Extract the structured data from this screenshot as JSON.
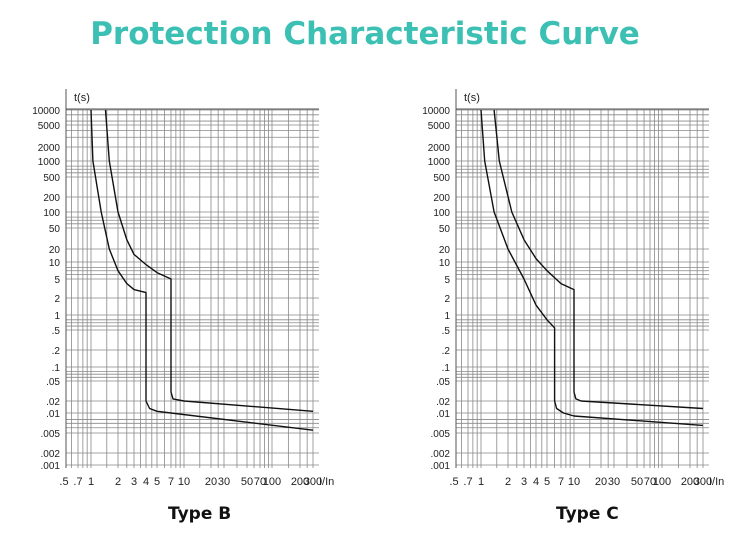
{
  "title": "Protection Characteristic Curve",
  "chart_data": [
    {
      "type": "line",
      "caption": "Type B",
      "ylabel": "t(s)",
      "xlabel": "I/In",
      "x_ticks": [
        ".5",
        ".7",
        "1",
        "2",
        "3",
        "4",
        "5",
        "7",
        "10",
        "20",
        "30",
        "50",
        "70",
        "100",
        "200",
        "300"
      ],
      "x_tick_values": [
        0.5,
        0.7,
        1,
        2,
        3,
        4,
        5,
        7,
        10,
        20,
        30,
        50,
        70,
        100,
        200,
        300
      ],
      "y_ticks": [
        "10000",
        "5000",
        "2000",
        "1000",
        "500",
        "200",
        "100",
        "50",
        "20",
        "10",
        "5",
        "2",
        "1",
        ".5",
        ".2",
        ".1",
        ".05",
        ".02",
        ".01",
        ".005",
        ".002",
        ".001"
      ],
      "y_tick_values": [
        10000,
        5000,
        2000,
        1000,
        500,
        200,
        100,
        50,
        20,
        10,
        5,
        2,
        1,
        0.5,
        0.2,
        0.1,
        0.05,
        0.02,
        0.01,
        0.005,
        0.002,
        0.001
      ],
      "grid": true,
      "series": [
        {
          "name": "lower",
          "points": [
            [
              1,
              10000
            ],
            [
              1.05,
              1000
            ],
            [
              1.3,
              100
            ],
            [
              1.6,
              20
            ],
            [
              2,
              7
            ],
            [
              2.5,
              4
            ],
            [
              3,
              3
            ],
            [
              4,
              2.6
            ],
            [
              4,
              0.02
            ],
            [
              4.3,
              0.013
            ],
            [
              5,
              0.011
            ],
            [
              7,
              0.01
            ],
            [
              300,
              0.0055
            ]
          ]
        },
        {
          "name": "upper",
          "points": [
            [
              1.45,
              10000
            ],
            [
              1.6,
              1000
            ],
            [
              2,
              100
            ],
            [
              2.5,
              30
            ],
            [
              3,
              15
            ],
            [
              4,
              9
            ],
            [
              5,
              6.5
            ],
            [
              7,
              5
            ],
            [
              7,
              0.03
            ],
            [
              7.4,
              0.022
            ],
            [
              10,
              0.02
            ],
            [
              300,
              0.011
            ]
          ]
        }
      ]
    },
    {
      "type": "line",
      "caption": "Type C",
      "ylabel": "t(s)",
      "xlabel": "I/In",
      "x_ticks": [
        ".5",
        ".7",
        "1",
        "2",
        "3",
        "4",
        "5",
        "7",
        "10",
        "20",
        "30",
        "50",
        "70",
        "100",
        "200",
        "300"
      ],
      "x_tick_values": [
        0.5,
        0.7,
        1,
        2,
        3,
        4,
        5,
        7,
        10,
        20,
        30,
        50,
        70,
        100,
        200,
        300
      ],
      "y_ticks": [
        "10000",
        "5000",
        "2000",
        "1000",
        "500",
        "200",
        "100",
        "50",
        "20",
        "10",
        "5",
        "2",
        "1",
        ".5",
        ".2",
        ".1",
        ".05",
        ".02",
        ".01",
        ".005",
        ".002",
        ".001"
      ],
      "y_tick_values": [
        10000,
        5000,
        2000,
        1000,
        500,
        200,
        100,
        50,
        20,
        10,
        5,
        2,
        1,
        0.5,
        0.2,
        0.1,
        0.05,
        0.02,
        0.01,
        0.005,
        0.002,
        0.001
      ],
      "grid": true,
      "series": [
        {
          "name": "lower",
          "points": [
            [
              1,
              10000
            ],
            [
              1.1,
              1000
            ],
            [
              1.4,
              100
            ],
            [
              2,
              20
            ],
            [
              3,
              5
            ],
            [
              4,
              1.5
            ],
            [
              5,
              0.8
            ],
            [
              6,
              0.55
            ],
            [
              6,
              0.02
            ],
            [
              6.3,
              0.013
            ],
            [
              7.5,
              0.01
            ],
            [
              10,
              0.009
            ],
            [
              300,
              0.0065
            ]
          ]
        },
        {
          "name": "upper",
          "points": [
            [
              1.4,
              10000
            ],
            [
              1.6,
              1000
            ],
            [
              2.2,
              100
            ],
            [
              3,
              30
            ],
            [
              4,
              12
            ],
            [
              5,
              7
            ],
            [
              7,
              4
            ],
            [
              10,
              3
            ],
            [
              10,
              0.03
            ],
            [
              10.5,
              0.022
            ],
            [
              12,
              0.02
            ],
            [
              300,
              0.013
            ]
          ]
        }
      ]
    }
  ]
}
